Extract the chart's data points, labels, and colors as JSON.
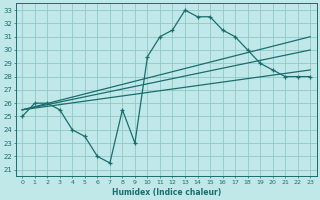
{
  "xlabel": "Humidex (Indice chaleur)",
  "background_color": "#c0e8e8",
  "grid_color": "#90c8c8",
  "line_color": "#1a6e6e",
  "xlim": [
    -0.5,
    23.5
  ],
  "ylim": [
    20.5,
    33.5
  ],
  "yticks": [
    21,
    22,
    23,
    24,
    25,
    26,
    27,
    28,
    29,
    30,
    31,
    32,
    33
  ],
  "xticks": [
    0,
    1,
    2,
    3,
    4,
    5,
    6,
    7,
    8,
    9,
    10,
    11,
    12,
    13,
    14,
    15,
    16,
    17,
    18,
    19,
    20,
    21,
    22,
    23
  ],
  "main_x": [
    0,
    1,
    2,
    3,
    4,
    5,
    6,
    7,
    8,
    9,
    10,
    11,
    12,
    13,
    14,
    15,
    16,
    17,
    18,
    19,
    20,
    21,
    22,
    23
  ],
  "main_y": [
    25.0,
    26.0,
    26.0,
    25.5,
    24.0,
    23.5,
    22.0,
    21.5,
    25.5,
    23.0,
    29.5,
    31.0,
    31.5,
    33.0,
    32.5,
    32.5,
    31.5,
    31.0,
    30.0,
    29.0,
    28.5,
    28.0,
    28.0,
    28.0
  ],
  "trend1_x": [
    0,
    23
  ],
  "trend1_y": [
    25.5,
    31.0
  ],
  "trend2_x": [
    0,
    23
  ],
  "trend2_y": [
    25.5,
    28.0
  ],
  "trend3_x": [
    0,
    23
  ],
  "trend3_y": [
    25.5,
    28.5
  ]
}
